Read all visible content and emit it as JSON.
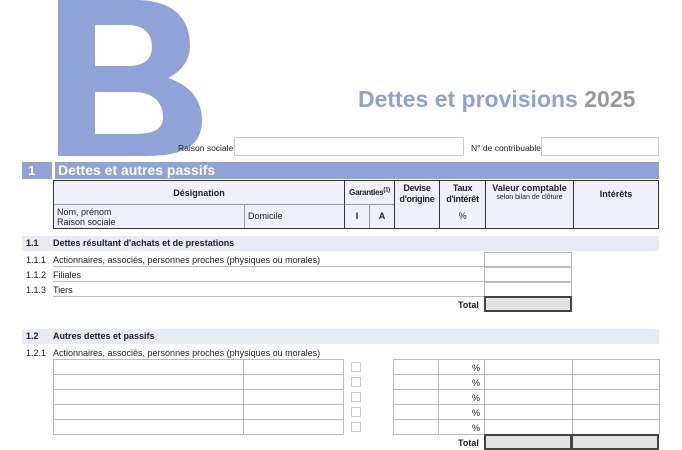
{
  "header": {
    "logo_letter": "B",
    "title": "Dettes et provisions",
    "year": "2025",
    "raison_sociale_label": "Raison sociale",
    "contribuable_label": "N° de contribuable",
    "raison_sociale_value": "",
    "contribuable_value": ""
  },
  "section": {
    "number": "1",
    "title": "Dettes et autres passifs"
  },
  "table_header": {
    "designation": "Désignation",
    "garanties": "Garanties",
    "garanties_note": "(1)",
    "devise": "Devise d'origine",
    "taux": "Taux d'intérêt",
    "valeur": "Valeur comptable",
    "valeur_sub": "selon bilan de clôture",
    "interets": "Intérêts",
    "nom": "Nom, prénom",
    "raison": "Raison sociale",
    "domicile": "Domicile",
    "i": "I",
    "a": "A",
    "pct": "%"
  },
  "s11": {
    "number": "1.1",
    "title": "Dettes résultant d'achats et de prestations",
    "rows": [
      {
        "num": "1.1.1",
        "label": "Actionnaires, associés, personnes proches (physiques ou morales)"
      },
      {
        "num": "1.1.2",
        "label": "Filiales"
      },
      {
        "num": "1.1.3",
        "label": "Tiers"
      }
    ],
    "total": "Total"
  },
  "s12": {
    "number": "1.2",
    "title": "Autres dettes et passifs",
    "sub_num": "1.2.1",
    "sub_label": "Actionnaires, associés, personnes proches (physiques ou morales)",
    "pct": "%",
    "total": "Total"
  },
  "colors": {
    "accent": "#8fa3d9",
    "band": "#e8eaf6"
  }
}
